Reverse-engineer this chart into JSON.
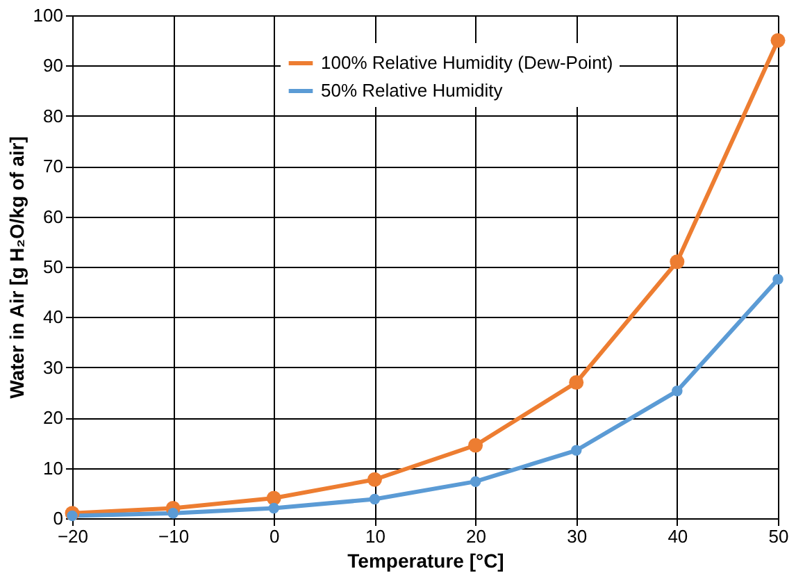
{
  "chart_data": {
    "type": "line",
    "xlabel": "Temperature [°C]",
    "ylabel": "Water in Air [g H₂O/kg of air]",
    "x": [
      -20,
      -10,
      0,
      10,
      20,
      30,
      40,
      50
    ],
    "series": [
      {
        "name": "100% Relative Humidity (Dew-Point)",
        "color": "#ed7d31",
        "values": [
          1.0,
          2.0,
          4.0,
          7.7,
          14.5,
          27,
          51,
          95
        ]
      },
      {
        "name": "50% Relative Humidity",
        "color": "#5b9bd5",
        "values": [
          0.5,
          1.0,
          2.0,
          3.8,
          7.3,
          13.5,
          25.3,
          47.5
        ]
      }
    ],
    "xlim": [
      -20,
      50
    ],
    "xticks": [
      -20,
      -10,
      0,
      10,
      20,
      30,
      40,
      50
    ],
    "ylim": [
      0,
      100
    ],
    "yticks": [
      0,
      10,
      20,
      30,
      40,
      50,
      60,
      70,
      80,
      90,
      100
    ],
    "grid": true,
    "legend": "top",
    "marker": "circle",
    "line_style": "solid"
  }
}
